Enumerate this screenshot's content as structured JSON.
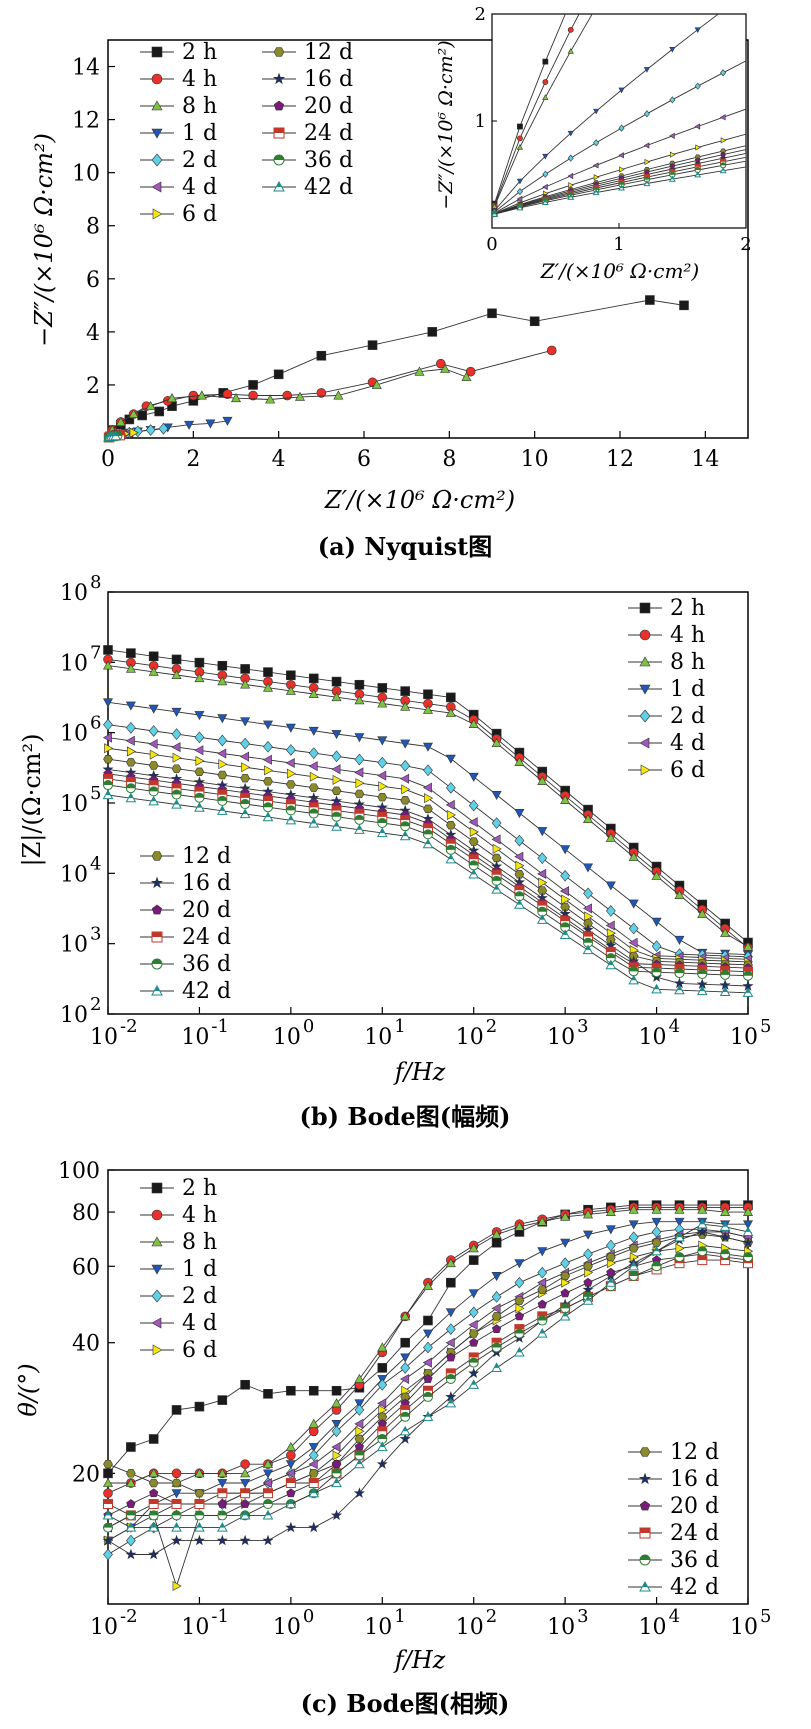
{
  "series_styles": [
    {
      "name": "2 h",
      "color": "#1a1a1a",
      "marker": "square"
    },
    {
      "name": "4 h",
      "color": "#e8312a",
      "marker": "circle"
    },
    {
      "name": "8 h",
      "color": "#7dc242",
      "marker": "triangle-up"
    },
    {
      "name": "1 d",
      "color": "#1f57b4",
      "marker": "triangle-down"
    },
    {
      "name": "2 d",
      "color": "#5fd0e6",
      "marker": "diamond"
    },
    {
      "name": "4 d",
      "color": "#a056b8",
      "marker": "triangle-left"
    },
    {
      "name": "6 d",
      "color": "#f5e50f",
      "marker": "triangle-right"
    },
    {
      "name": "12 d",
      "color": "#8a8a2a",
      "marker": "hexagon"
    },
    {
      "name": "16 d",
      "color": "#1b2f6b",
      "marker": "star"
    },
    {
      "name": "20 d",
      "color": "#7a1a7a",
      "marker": "pentagon"
    },
    {
      "name": "24 d",
      "color": "#c0392b",
      "marker": "half-square"
    },
    {
      "name": "36 d",
      "color": "#2e7d32",
      "marker": "half-circle"
    },
    {
      "name": "42 d",
      "color": "#1f8a8a",
      "marker": "half-triangle"
    }
  ],
  "chart_data": [
    {
      "type": "scatter",
      "caption": "(a) Nyquist图",
      "xlabel": "Z′/(×10⁶ Ω·cm²)",
      "ylabel": "−Z″/(×10⁶ Ω·cm²)",
      "xlim": [
        0,
        15
      ],
      "ylim": [
        0,
        15
      ],
      "xticks": [
        "0",
        "2",
        "4",
        "6",
        "8",
        "10",
        "12",
        "14"
      ],
      "yticks": [
        "2",
        "4",
        "6",
        "8",
        "10",
        "12",
        "14"
      ],
      "legend_position": "top-left",
      "series": [
        {
          "name": "2 h",
          "x": [
            0.1,
            0.3,
            0.5,
            0.8,
            1.2,
            1.5,
            2.0,
            2.7,
            3.4,
            4.0,
            5.0,
            6.2,
            7.6,
            9.0,
            10.0,
            12.7,
            13.5
          ],
          "y": [
            0.3,
            0.5,
            0.7,
            0.85,
            1.0,
            1.2,
            1.4,
            1.7,
            2.0,
            2.4,
            3.1,
            3.5,
            4.0,
            4.7,
            4.4,
            5.2,
            5.0
          ]
        },
        {
          "name": "4 h",
          "x": [
            0.1,
            0.3,
            0.6,
            0.9,
            1.4,
            2.0,
            2.8,
            3.4,
            4.2,
            5.0,
            6.2,
            7.8,
            8.5,
            10.4
          ],
          "y": [
            0.3,
            0.6,
            0.9,
            1.2,
            1.4,
            1.6,
            1.65,
            1.6,
            1.6,
            1.7,
            2.1,
            2.8,
            2.5,
            3.3
          ]
        },
        {
          "name": "8 h",
          "x": [
            0.1,
            0.3,
            0.6,
            1.0,
            1.5,
            2.2,
            3.0,
            3.8,
            4.5,
            5.4,
            6.3,
            7.3,
            7.9,
            8.4
          ],
          "y": [
            0.3,
            0.6,
            0.9,
            1.2,
            1.5,
            1.6,
            1.5,
            1.45,
            1.55,
            1.6,
            2.0,
            2.5,
            2.6,
            2.3
          ]
        },
        {
          "name": "1 d",
          "x": [
            0.05,
            0.2,
            0.4,
            0.7,
            1.0,
            1.4,
            1.9,
            2.4,
            2.8
          ],
          "y": [
            0.1,
            0.15,
            0.2,
            0.25,
            0.3,
            0.4,
            0.5,
            0.55,
            0.65
          ]
        },
        {
          "name": "2 d",
          "x": [
            0.05,
            0.15,
            0.3,
            0.5,
            0.7,
            1.0,
            1.3
          ],
          "y": [
            0.05,
            0.1,
            0.15,
            0.2,
            0.25,
            0.3,
            0.35
          ]
        },
        {
          "name": "4 d",
          "x": [
            0.05,
            0.1,
            0.2,
            0.35,
            0.5
          ],
          "y": [
            0.05,
            0.08,
            0.12,
            0.15,
            0.2
          ]
        },
        {
          "name": "6 d",
          "x": [
            0.03,
            0.08,
            0.15,
            0.25,
            0.4,
            0.6
          ],
          "y": [
            0.05,
            0.08,
            0.1,
            0.13,
            0.16,
            0.2
          ]
        },
        {
          "name": "12 d",
          "x": [
            0.02,
            0.06,
            0.12,
            0.2,
            0.3
          ],
          "y": [
            0.03,
            0.06,
            0.08,
            0.1,
            0.12
          ]
        },
        {
          "name": "16 d",
          "x": [
            0.02,
            0.05,
            0.1,
            0.15,
            0.2
          ],
          "y": [
            0.02,
            0.04,
            0.06,
            0.07,
            0.08
          ]
        },
        {
          "name": "20 d",
          "x": [
            0.02,
            0.06,
            0.12,
            0.2,
            0.3
          ],
          "y": [
            0.03,
            0.06,
            0.08,
            0.1,
            0.11
          ]
        },
        {
          "name": "24 d",
          "x": [
            0.02,
            0.05,
            0.1,
            0.18,
            0.28
          ],
          "y": [
            0.02,
            0.05,
            0.07,
            0.09,
            0.1
          ]
        },
        {
          "name": "36 d",
          "x": [
            0.02,
            0.05,
            0.09,
            0.15,
            0.22
          ],
          "y": [
            0.02,
            0.04,
            0.06,
            0.07,
            0.08
          ]
        },
        {
          "name": "42 d",
          "x": [
            0.01,
            0.03,
            0.07,
            0.12,
            0.18
          ],
          "y": [
            0.02,
            0.03,
            0.05,
            0.06,
            0.07
          ]
        }
      ],
      "inset": {
        "xlabel": "Z′/(×10⁶ Ω·cm²)",
        "ylabel": "−Z″/(×10⁶ Ω·cm²)",
        "xlim": [
          0,
          2
        ],
        "ylim": [
          0,
          2
        ],
        "xticks": [
          "0",
          "1",
          "2"
        ],
        "yticks": [
          "1",
          "2"
        ]
      }
    },
    {
      "type": "line",
      "caption": "(b) Bode图(幅频)",
      "xlabel": "f/Hz",
      "ylabel": "|Z|/(Ω·cm²)",
      "xscale": "log",
      "yscale": "log",
      "xlim": [
        0.01,
        100000
      ],
      "ylim": [
        100,
        100000000
      ],
      "xtick_exponents": [
        "-2",
        "-1",
        "0",
        "1",
        "2",
        "3",
        "4",
        "5"
      ],
      "ytick_exponents": [
        "2",
        "3",
        "4",
        "5",
        "6",
        "7",
        "8"
      ],
      "x": [
        0.01,
        0.0178,
        0.0316,
        0.0562,
        0.1,
        0.178,
        0.316,
        0.562,
        1,
        1.78,
        3.16,
        5.62,
        10,
        17.8,
        31.6,
        56.2,
        100,
        178,
        316,
        562,
        1000,
        1780,
        3160,
        5620,
        10000,
        17800,
        31600,
        56200,
        100000
      ],
      "legend_upper": "top-right",
      "legend_lower": "lower-left",
      "series": [
        {
          "name": "2 h",
          "plateau": 15000000,
          "corner": 60,
          "slope": 0.9,
          "hf": 800
        },
        {
          "name": "4 h",
          "plateau": 11000000,
          "corner": 70,
          "slope": 0.9,
          "hf": 850
        },
        {
          "name": "8 h",
          "plateau": 9000000,
          "corner": 75,
          "slope": 0.9,
          "hf": 900
        },
        {
          "name": "1 d",
          "plateau": 2700000,
          "corner": 40,
          "slope": 0.85,
          "hf": 700
        },
        {
          "name": "2 d",
          "plateau": 1300000,
          "corner": 30,
          "slope": 0.82,
          "hf": 650
        },
        {
          "name": "4 d",
          "plateau": 850000,
          "corner": 25,
          "slope": 0.8,
          "hf": 600
        },
        {
          "name": "6 d",
          "plateau": 600000,
          "corner": 25,
          "slope": 0.78,
          "hf": 550
        },
        {
          "name": "12 d",
          "plateau": 420000,
          "corner": 25,
          "slope": 0.75,
          "hf": 500
        },
        {
          "name": "16 d",
          "plateau": 300000,
          "corner": 25,
          "slope": 0.72,
          "hf": 250
        },
        {
          "name": "20 d",
          "plateau": 260000,
          "corner": 25,
          "slope": 0.72,
          "hf": 450
        },
        {
          "name": "24 d",
          "plateau": 220000,
          "corner": 25,
          "slope": 0.7,
          "hf": 400
        },
        {
          "name": "36 d",
          "plateau": 180000,
          "corner": 25,
          "slope": 0.7,
          "hf": 350
        },
        {
          "name": "42 d",
          "plateau": 130000,
          "corner": 25,
          "slope": 0.68,
          "hf": 200
        }
      ]
    },
    {
      "type": "line",
      "caption": "(c) Bode图(相频)",
      "xlabel": "f/Hz",
      "ylabel": "θ/(°)",
      "xscale": "log",
      "yscale": "log",
      "xlim": [
        0.01,
        100000
      ],
      "ylim": [
        10,
        100
      ],
      "xtick_exponents": [
        "-2",
        "-1",
        "0",
        "1",
        "2",
        "3",
        "4",
        "5"
      ],
      "yticks": [
        "20",
        "40",
        "60",
        "80",
        "100"
      ],
      "legend_upper": "top-left",
      "legend_lower": "lower-right",
      "x": [
        0.01,
        0.0178,
        0.0316,
        0.0562,
        0.1,
        0.178,
        0.316,
        0.562,
        1,
        1.78,
        3.16,
        5.62,
        10,
        17.8,
        31.6,
        56.2,
        100,
        178,
        316,
        562,
        1000,
        1780,
        3160,
        5620,
        10000,
        17800,
        31600,
        56200,
        100000
      ],
      "series": [
        {
          "name": "2 h",
          "values": [
            20,
            23,
            24,
            28,
            28.5,
            29.5,
            32,
            30.5,
            31,
            31,
            31,
            31.5,
            35,
            40,
            45,
            55,
            62,
            68,
            72,
            76,
            79,
            81,
            82,
            83,
            83,
            83,
            83,
            83,
            83
          ]
        },
        {
          "name": "4 h",
          "values": [
            18,
            19,
            20,
            20,
            20,
            20,
            21,
            21,
            22,
            25,
            28,
            32,
            38,
            46,
            55,
            62,
            67,
            72,
            75,
            77,
            79,
            80,
            81,
            82,
            82,
            82,
            82,
            82,
            82
          ]
        },
        {
          "name": "8 h",
          "values": [
            19,
            19,
            20,
            19,
            20,
            20,
            20,
            21,
            23,
            26,
            29,
            33,
            39,
            46,
            54,
            61,
            66,
            71,
            74,
            76,
            78,
            79,
            80,
            81,
            81,
            81,
            81,
            80,
            80
          ]
        },
        {
          "name": "1 d",
          "values": [
            14,
            15,
            17,
            18,
            18,
            19,
            19,
            20,
            21,
            23,
            26,
            29,
            33,
            37,
            42,
            47,
            52,
            57,
            61,
            65,
            68,
            71,
            73,
            75,
            76,
            76,
            76,
            75,
            75
          ]
        },
        {
          "name": "2 d",
          "values": [
            13,
            14,
            15,
            16,
            17,
            17,
            18,
            19,
            20,
            22,
            25,
            28,
            32,
            35,
            39,
            43,
            47,
            51,
            55,
            58,
            61,
            64,
            67,
            70,
            72,
            73,
            73,
            72,
            70
          ]
        },
        {
          "name": "4 d",
          "values": [
            15,
            16,
            16,
            17,
            17,
            17,
            18,
            19,
            20,
            21,
            23,
            26,
            29,
            33,
            36,
            40,
            44,
            48,
            51,
            55,
            58,
            61,
            64,
            67,
            69,
            71,
            72,
            72,
            70
          ]
        },
        {
          "name": "6 d",
          "values": [
            14,
            15,
            16,
            11,
            16,
            16,
            17,
            18,
            19,
            20,
            22,
            25,
            28,
            31,
            34,
            38,
            42,
            45,
            48,
            52,
            55,
            58,
            61,
            63,
            65,
            66,
            67,
            66,
            65
          ]
        },
        {
          "name": "12 d",
          "values": [
            21,
            20,
            19,
            19,
            18,
            18,
            18,
            18,
            19,
            20,
            21,
            24,
            27,
            30,
            34,
            38,
            42,
            46,
            50,
            53,
            57,
            60,
            63,
            66,
            68,
            70,
            71,
            70,
            68
          ]
        },
        {
          "name": "16 d",
          "values": [
            14,
            13,
            13,
            14,
            14,
            14,
            14,
            14,
            15,
            15,
            16,
            18,
            21,
            24,
            27,
            30,
            34,
            38,
            41,
            45,
            49,
            53,
            57,
            61,
            65,
            69,
            72,
            70,
            68
          ]
        },
        {
          "name": "20 d",
          "values": [
            16,
            17,
            18,
            17,
            17,
            17,
            17,
            17,
            18,
            19,
            21,
            23,
            26,
            29,
            33,
            37,
            40,
            43,
            46,
            49,
            52,
            55,
            58,
            60,
            62,
            63,
            64,
            63,
            62
          ]
        },
        {
          "name": "24 d",
          "values": [
            17,
            16,
            17,
            17,
            17,
            18,
            18,
            18,
            19,
            19,
            20,
            22,
            25,
            28,
            31,
            34,
            37,
            40,
            43,
            46,
            48,
            51,
            54,
            57,
            59,
            61,
            62,
            62,
            61
          ]
        },
        {
          "name": "36 d",
          "values": [
            15,
            16,
            16,
            16,
            16,
            16,
            16,
            17,
            17,
            18,
            20,
            22,
            24,
            27,
            30,
            33,
            36,
            39,
            42,
            45,
            48,
            51,
            54,
            57,
            60,
            63,
            65,
            64,
            63
          ]
        },
        {
          "name": "42 d",
          "values": [
            16,
            15,
            15,
            15,
            15,
            15,
            16,
            16,
            17,
            18,
            19,
            21,
            23,
            25,
            27,
            29,
            32,
            35,
            38,
            42,
            46,
            50,
            55,
            60,
            65,
            70,
            75,
            74,
            72
          ]
        }
      ]
    }
  ]
}
